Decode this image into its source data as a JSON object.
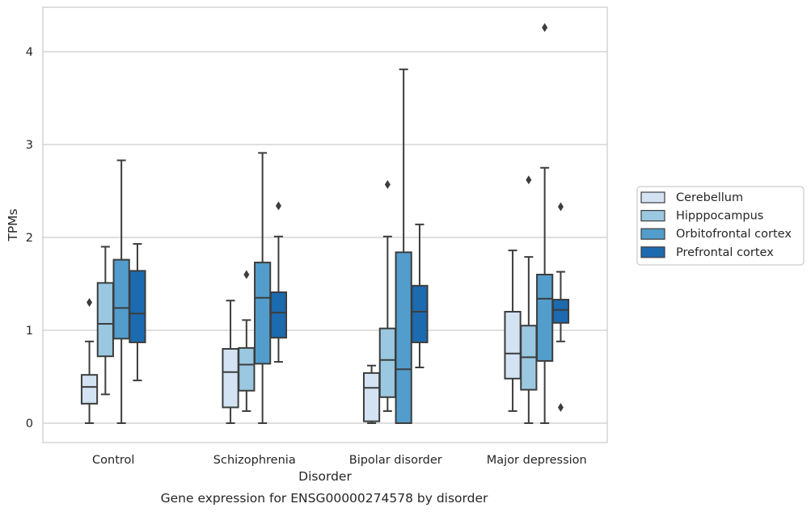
{
  "chart_data": {
    "type": "box",
    "title": "",
    "caption": "Gene expression for ENSG00000274578 by disorder",
    "xlabel": "Disorder",
    "ylabel": "TPMs",
    "ylim": [
      -0.2,
      4.5
    ],
    "yticks": [
      "0",
      "1",
      "2",
      "3",
      "4"
    ],
    "grid": "horizontal",
    "legend_position": "right",
    "categories": [
      "Control",
      "Schizophrenia",
      "Bipolar disorder",
      "Major depression"
    ],
    "series": [
      {
        "name": "Cerebellum",
        "color": "#d3e3f3",
        "boxes": [
          {
            "whislo": 0.0,
            "q1": 0.21,
            "med": 0.39,
            "q3": 0.52,
            "whishi": 0.88,
            "fliers": [
              1.3
            ]
          },
          {
            "whislo": 0.0,
            "q1": 0.17,
            "med": 0.55,
            "q3": 0.8,
            "whishi": 1.32,
            "fliers": []
          },
          {
            "whislo": 0.0,
            "q1": 0.02,
            "med": 0.38,
            "q3": 0.54,
            "whishi": 0.62,
            "fliers": []
          },
          {
            "whislo": 0.13,
            "q1": 0.48,
            "med": 0.75,
            "q3": 1.2,
            "whishi": 1.86,
            "fliers": []
          }
        ]
      },
      {
        "name": "Hipppocampus",
        "color": "#9ac8e0",
        "boxes": [
          {
            "whislo": 0.31,
            "q1": 0.72,
            "med": 1.07,
            "q3": 1.51,
            "whishi": 1.9,
            "fliers": []
          },
          {
            "whislo": 0.13,
            "q1": 0.35,
            "med": 0.63,
            "q3": 0.81,
            "whishi": 1.11,
            "fliers": [
              1.6
            ]
          },
          {
            "whislo": 0.13,
            "q1": 0.28,
            "med": 0.68,
            "q3": 1.02,
            "whishi": 2.01,
            "fliers": [
              2.57
            ]
          },
          {
            "whislo": 0.0,
            "q1": 0.36,
            "med": 0.71,
            "q3": 1.05,
            "whishi": 1.79,
            "fliers": [
              2.62
            ]
          }
        ]
      },
      {
        "name": "Orbitofrontal cortex",
        "color": "#529dcc",
        "boxes": [
          {
            "whislo": 0.0,
            "q1": 0.91,
            "med": 1.24,
            "q3": 1.76,
            "whishi": 2.83,
            "fliers": []
          },
          {
            "whislo": 0.0,
            "q1": 0.64,
            "med": 1.35,
            "q3": 1.73,
            "whishi": 2.91,
            "fliers": []
          },
          {
            "whislo": 0.0,
            "q1": 0.0,
            "med": 0.58,
            "q3": 1.84,
            "whishi": 3.81,
            "fliers": []
          },
          {
            "whislo": 0.0,
            "q1": 0.67,
            "med": 1.34,
            "q3": 1.6,
            "whishi": 2.75,
            "fliers": [
              4.26
            ]
          }
        ]
      },
      {
        "name": "Prefrontal cortex",
        "color": "#1c6aaf",
        "boxes": [
          {
            "whislo": 0.46,
            "q1": 0.87,
            "med": 1.18,
            "q3": 1.64,
            "whishi": 1.93,
            "fliers": []
          },
          {
            "whislo": 0.66,
            "q1": 0.92,
            "med": 1.19,
            "q3": 1.41,
            "whishi": 2.01,
            "fliers": [
              2.34
            ]
          },
          {
            "whislo": 0.6,
            "q1": 0.87,
            "med": 1.2,
            "q3": 1.48,
            "whishi": 2.14,
            "fliers": []
          },
          {
            "whislo": 0.88,
            "q1": 1.08,
            "med": 1.22,
            "q3": 1.33,
            "whishi": 1.63,
            "fliers": [
              2.33,
              0.17
            ]
          }
        ]
      }
    ]
  }
}
